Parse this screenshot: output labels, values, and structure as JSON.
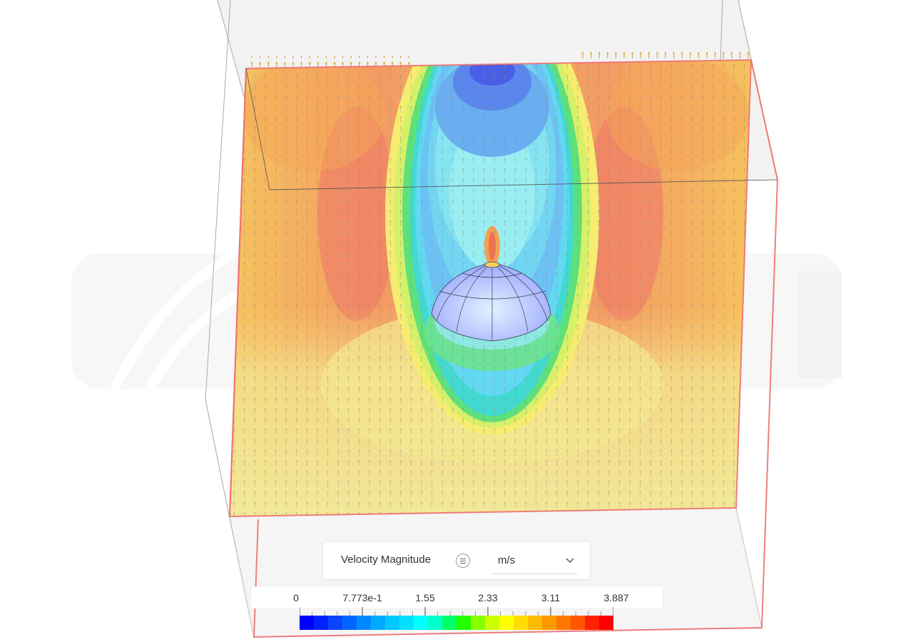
{
  "legend": {
    "quantity_label": "Velocity Magnitude",
    "unit": "m/s",
    "tick_labels": [
      "0",
      "7.773e-1",
      "1.55",
      "2.33",
      "3.11",
      "3.887"
    ],
    "range": [
      0,
      3.887
    ],
    "colors": [
      "#0000ff",
      "#0022ff",
      "#0a44ff",
      "#0066ff",
      "#0088ff",
      "#00aaff",
      "#00c8ff",
      "#00e0ff",
      "#00ffff",
      "#00ffcc",
      "#00ff66",
      "#22ff00",
      "#88ff00",
      "#ccff00",
      "#ffff00",
      "#ffdd00",
      "#ffbb00",
      "#ff9900",
      "#ff7700",
      "#ff5500",
      "#ff2200",
      "#ff0000"
    ]
  },
  "viewport": {
    "selection_color": "#f07070",
    "icons": [
      "list-icon",
      "chevron-down-icon"
    ]
  }
}
